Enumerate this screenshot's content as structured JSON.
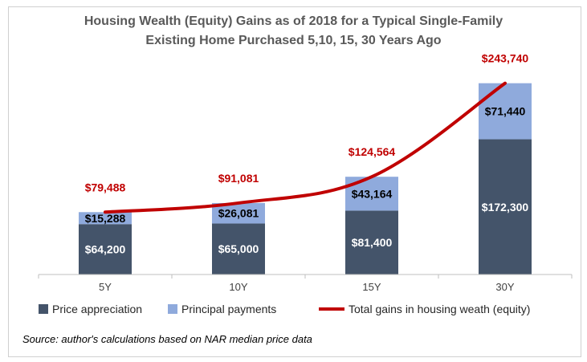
{
  "title_line1": "Housing Wealth (Equity) Gains as of 2018 for a Typical Single-Family",
  "title_line2": "Existing Home Purchased 5,10, 15, 30 Years Ago",
  "source": "Source: author's calculations based on NAR median price data",
  "colors": {
    "price_appreciation": "#44546a",
    "principal_payments": "#8faadc",
    "total_line": "#c00000"
  },
  "chart_data": {
    "type": "bar",
    "stacked": true,
    "categories": [
      "5Y",
      "10Y",
      "15Y",
      "30Y"
    ],
    "series": [
      {
        "name": "Price appreciation",
        "values": [
          64200,
          65000,
          81400,
          172300
        ],
        "labels": [
          "$64,200",
          "$65,000",
          "$81,400",
          "$172,300"
        ]
      },
      {
        "name": "Principal payments",
        "values": [
          15288,
          26081,
          43164,
          71440
        ],
        "labels": [
          "$15,288",
          "$26,081",
          "$43,164",
          "$71,440"
        ]
      }
    ],
    "line": {
      "name": "Total gains in housing weath (equity)",
      "values": [
        79488,
        91081,
        124564,
        243740
      ],
      "labels": [
        "$79,488",
        "$91,081",
        "$124,564",
        "$243,740"
      ]
    },
    "ylim": [
      0,
      270000
    ],
    "grid": false,
    "legend": "bottom"
  }
}
